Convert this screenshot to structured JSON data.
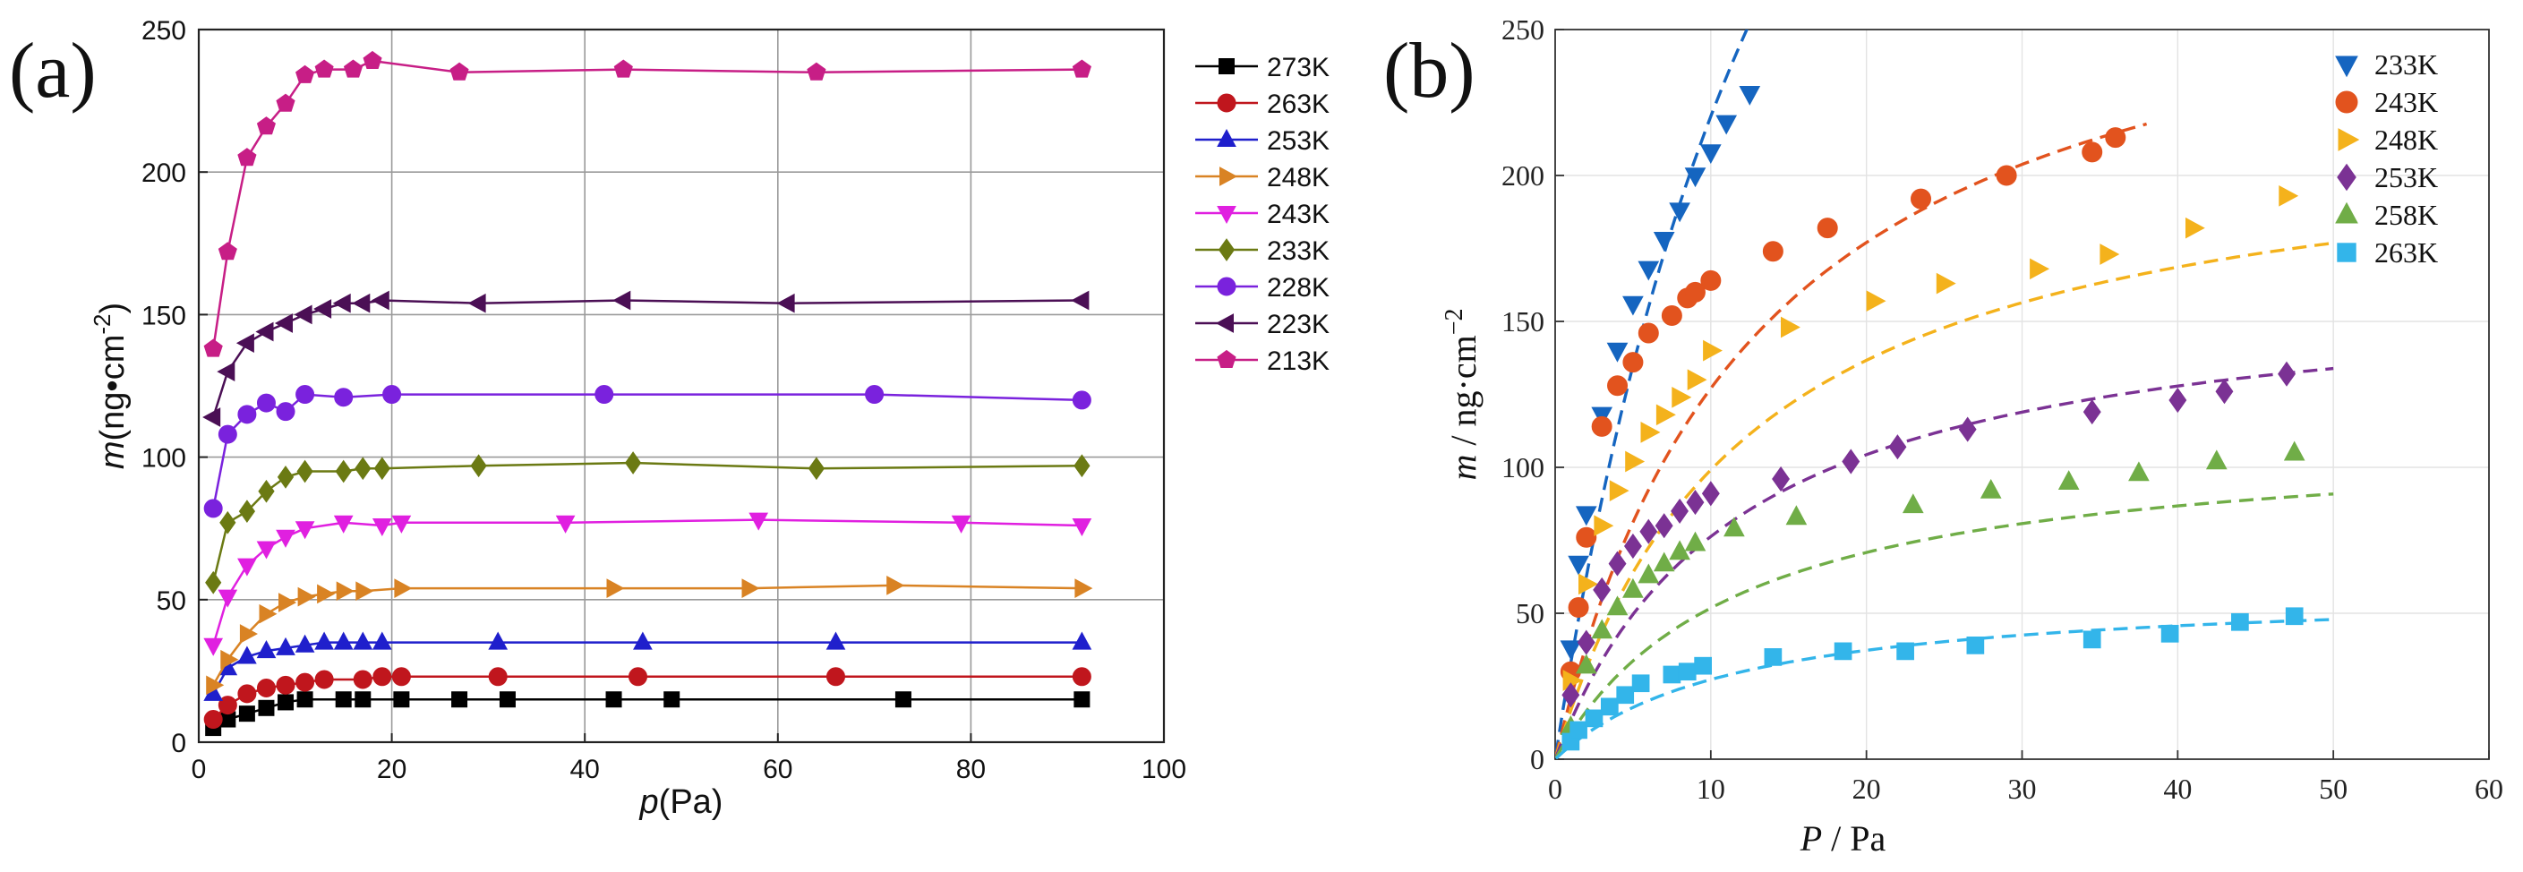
{
  "chart_data": [
    {
      "panel_label": "(a)",
      "type": "line",
      "xlabel_italic": "p",
      "xlabel_rest": "(Pa)",
      "ylabel_italic": "m",
      "ylabel_rest": "(ng•cm",
      "ylabel_sup": "-2",
      "ylabel_close": ")",
      "xlim": [
        0,
        100
      ],
      "ylim": [
        0,
        250
      ],
      "x_ticks": [
        0,
        20,
        40,
        60,
        80,
        100
      ],
      "y_ticks": [
        0,
        50,
        100,
        150,
        200,
        250
      ],
      "grid": true,
      "legend_position": "outside-right",
      "series": [
        {
          "name": "273K",
          "color": "#000000",
          "marker": "square",
          "x": [
            1.5,
            3,
            5,
            7,
            9,
            11,
            15,
            17,
            21,
            27,
            32,
            43,
            49,
            73,
            91.5
          ],
          "y": [
            5,
            8,
            10,
            12,
            14,
            15,
            15,
            15,
            15,
            15,
            15,
            15,
            15,
            15,
            15
          ]
        },
        {
          "name": "263K",
          "color": "#c0161d",
          "marker": "circle",
          "x": [
            1.5,
            3,
            5,
            7,
            9,
            11,
            13,
            17,
            19,
            21,
            31,
            45.5,
            66,
            91.5
          ],
          "y": [
            8,
            13,
            17,
            19,
            20,
            21,
            22,
            22,
            23,
            23,
            23,
            23,
            23,
            23
          ]
        },
        {
          "name": "253K",
          "color": "#1f1fcc",
          "marker": "triangle-up",
          "x": [
            1.5,
            3,
            5,
            7,
            9,
            11,
            13,
            15,
            17,
            19,
            31,
            46,
            66,
            91.5
          ],
          "y": [
            17,
            26,
            30,
            32,
            33,
            34,
            35,
            35,
            35,
            35,
            35,
            35,
            35,
            35
          ]
        },
        {
          "name": "248K",
          "color": "#d98324",
          "marker": "triangle-right",
          "x": [
            1.5,
            3,
            5,
            7,
            9,
            11,
            13,
            15,
            17,
            21,
            43,
            57,
            72,
            91.5
          ],
          "y": [
            20,
            29,
            38,
            45,
            49,
            51,
            52,
            53,
            53,
            54,
            54,
            54,
            55,
            54
          ]
        },
        {
          "name": "243K",
          "color": "#e020e0",
          "marker": "triangle-down",
          "x": [
            1.5,
            3,
            5,
            7,
            9,
            11,
            15,
            19,
            21,
            38,
            58,
            79,
            91.5
          ],
          "y": [
            34,
            51,
            62,
            68,
            72,
            75,
            77,
            76,
            77,
            77,
            78,
            77,
            76
          ]
        },
        {
          "name": "233K",
          "color": "#6b7a13",
          "marker": "diamond",
          "x": [
            1.5,
            3,
            5,
            7,
            9,
            11,
            15,
            17,
            19,
            29,
            45,
            64,
            91.5
          ],
          "y": [
            56,
            77,
            81,
            88,
            93,
            95,
            95,
            96,
            96,
            97,
            98,
            96,
            97
          ]
        },
        {
          "name": "228K",
          "color": "#7a22dd",
          "marker": "circle",
          "x": [
            1.5,
            3,
            5,
            7,
            9,
            11,
            15,
            20,
            42,
            70,
            91.5
          ],
          "y": [
            82,
            108,
            115,
            119,
            116,
            122,
            121,
            122,
            122,
            122,
            120
          ]
        },
        {
          "name": "223K",
          "color": "#4b0f55",
          "marker": "triangle-left",
          "x": [
            1.5,
            3,
            5,
            7,
            9,
            11,
            13,
            15,
            17,
            19,
            29,
            44,
            61,
            91.5
          ],
          "y": [
            114,
            130,
            140,
            144,
            147,
            150,
            152,
            154,
            154,
            155,
            154,
            155,
            154,
            155
          ]
        },
        {
          "name": "213K",
          "color": "#c71e86",
          "marker": "pentagon",
          "x": [
            1.5,
            3,
            5,
            7,
            9,
            11,
            13,
            16,
            18,
            27,
            44,
            64,
            91.5
          ],
          "y": [
            138,
            172,
            205,
            216,
            224,
            234,
            236,
            236,
            239,
            235,
            236,
            235,
            236
          ]
        }
      ]
    },
    {
      "panel_label": "(b)",
      "type": "scatter",
      "xlabel_italic": "P",
      "xlabel_rest": " / Pa",
      "ylabel_italic": "m",
      "ylabel_rest": " / ng·cm",
      "ylabel_sup": "−2",
      "xlim": [
        0,
        60
      ],
      "ylim": [
        0,
        250
      ],
      "x_ticks": [
        0,
        10,
        20,
        30,
        40,
        50,
        60
      ],
      "y_ticks": [
        0,
        50,
        100,
        150,
        200,
        250
      ],
      "grid": true,
      "fit_style": "dashed",
      "fit_model": "langmuir",
      "legend_position": "top-right",
      "series": [
        {
          "name": "233K",
          "color": "#1565c0",
          "marker": "triangle-down",
          "fit": {
            "qmax": 600,
            "K": 0.058,
            "xmax": 50
          },
          "x": [
            1,
            1.5,
            2,
            3,
            4,
            5,
            6,
            7,
            8,
            9,
            10,
            11,
            12.5
          ],
          "y": [
            38,
            67,
            84,
            118,
            140,
            156,
            168,
            178,
            188,
            200,
            208,
            218,
            228
          ]
        },
        {
          "name": "243K",
          "color": "#e2531e",
          "marker": "circle",
          "fit": {
            "qmax": 292,
            "K": 0.077,
            "xmax": 38
          },
          "x": [
            1,
            1.5,
            2,
            3,
            4,
            5,
            6,
            7.5,
            8.5,
            9,
            10,
            14,
            17.5,
            23.5,
            29,
            34.5,
            36
          ],
          "y": [
            30,
            52,
            76,
            114,
            128,
            136,
            146,
            152,
            158,
            160,
            164,
            174,
            182,
            192,
            200,
            208,
            213
          ]
        },
        {
          "name": "248K",
          "color": "#f4b21c",
          "marker": "triangle-right",
          "fit": {
            "qmax": 220,
            "K": 0.082,
            "xmax": 50
          },
          "x": [
            1,
            2,
            3,
            4,
            5,
            6,
            7,
            8,
            9,
            10,
            15,
            20.5,
            25,
            31,
            35.5,
            41,
            47
          ],
          "y": [
            27,
            60,
            80,
            92,
            102,
            112,
            118,
            124,
            130,
            140,
            148,
            157,
            163,
            168,
            173,
            182,
            193
          ]
        },
        {
          "name": "253K",
          "color": "#7b3294",
          "marker": "diamond",
          "fit": {
            "qmax": 165,
            "K": 0.086,
            "xmax": 50
          },
          "x": [
            1,
            2,
            3,
            4,
            5,
            6,
            7,
            8,
            9,
            10,
            14.5,
            19,
            22,
            26.5,
            34.5,
            40,
            43,
            47
          ],
          "y": [
            22,
            40,
            58,
            67,
            73,
            78,
            80,
            85,
            88,
            91,
            96,
            102,
            107,
            113,
            119,
            123,
            126,
            132
          ]
        },
        {
          "name": "258K",
          "color": "#70ad47",
          "marker": "triangle-up",
          "fit": {
            "qmax": 112,
            "K": 0.086,
            "xmax": 50
          },
          "x": [
            1,
            2,
            3,
            4,
            5,
            6,
            7,
            8,
            9,
            11.5,
            15.5,
            23,
            28,
            33,
            37.5,
            42.5,
            47.5
          ],
          "y": [
            11,
            32,
            44,
            52,
            58,
            63,
            67,
            71,
            74,
            79,
            83,
            87,
            92,
            95,
            98,
            102,
            105
          ]
        },
        {
          "name": "263K",
          "color": "#33b5ea",
          "marker": "square",
          "fit": {
            "qmax": 59,
            "K": 0.086,
            "xmax": 50
          },
          "x": [
            1,
            1.5,
            2.5,
            3.5,
            4.5,
            5.5,
            7.5,
            8.5,
            9.5,
            14,
            18.5,
            22.5,
            27,
            34.5,
            39.5,
            44,
            47.5
          ],
          "y": [
            6,
            10,
            14,
            18,
            22,
            26,
            29,
            30,
            32,
            35,
            37,
            37,
            39,
            41,
            43,
            47,
            49
          ]
        }
      ]
    }
  ]
}
